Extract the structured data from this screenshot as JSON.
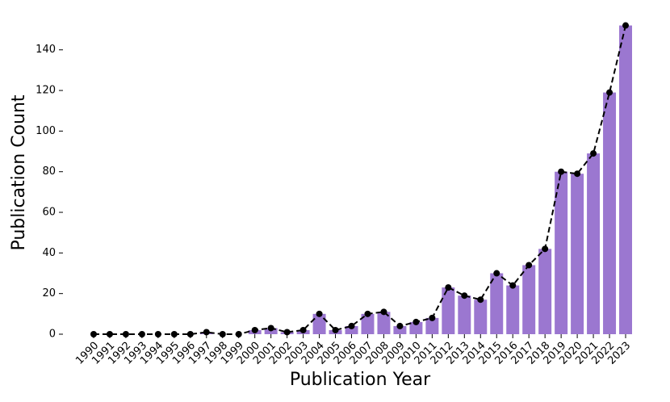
{
  "chart_data": {
    "type": "bar",
    "xlabel": "Publication Year",
    "ylabel": "Publication Count",
    "categories": [
      "1990",
      "1991",
      "1992",
      "1993",
      "1994",
      "1995",
      "1996",
      "1997",
      "1998",
      "1999",
      "2000",
      "2001",
      "2002",
      "2003",
      "2004",
      "2005",
      "2006",
      "2007",
      "2008",
      "2009",
      "2010",
      "2011",
      "2012",
      "2013",
      "2014",
      "2015",
      "2016",
      "2017",
      "2018",
      "2019",
      "2020",
      "2021",
      "2022",
      "2023"
    ],
    "values": [
      0,
      0,
      0,
      0,
      0,
      0,
      0,
      1,
      0,
      0,
      2,
      3,
      1,
      2,
      10,
      2,
      4,
      10,
      11,
      4,
      6,
      8,
      23,
      19,
      17,
      30,
      24,
      34,
      42,
      80,
      79,
      89,
      119,
      152
    ],
    "color": "#9b77d0",
    "line_color": "#000000",
    "line_dashed": true,
    "line_markers": true,
    "ylim": [
      0,
      155
    ],
    "yticks": [
      0,
      20,
      40,
      60,
      80,
      100,
      120,
      140
    ],
    "grid": false
  }
}
